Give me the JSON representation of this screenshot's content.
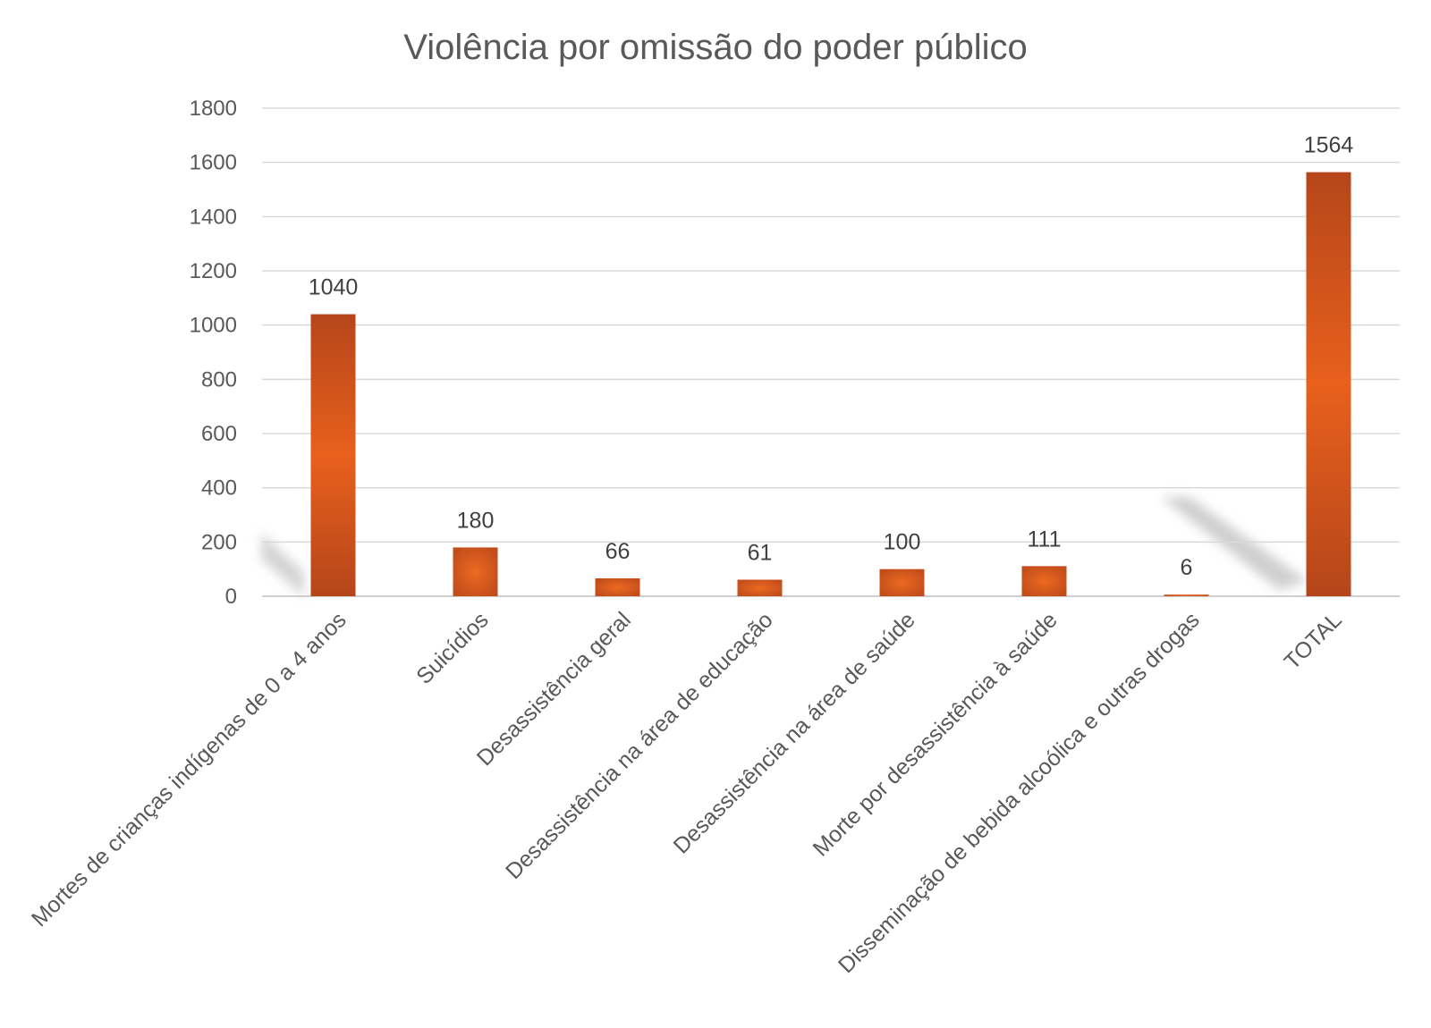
{
  "chart_data": {
    "type": "bar",
    "title": "Violência por omissão do poder público",
    "xlabel": "",
    "ylabel": "",
    "ylim": [
      0,
      1800
    ],
    "yticks": [
      0,
      200,
      400,
      600,
      800,
      1000,
      1200,
      1400,
      1600,
      1800
    ],
    "grid": true,
    "legend": "none",
    "categories": [
      "Mortes de crianças indígenas de 0 a 4 anos",
      "Suicídios",
      "Desassistência geral",
      "Desassistência na área de educação",
      "Desassistência na área de saúde",
      "Morte por desassistência à saúde",
      "Disseminação de bebida alcoólica e outras drogas",
      "TOTAL"
    ],
    "values": [
      1040,
      180,
      66,
      61,
      100,
      111,
      6,
      1564
    ],
    "data_labels": [
      "1040",
      "180",
      "66",
      "61",
      "100",
      "111",
      "6",
      "1564"
    ],
    "colors": {
      "bar_edge": "#b5461a",
      "bar_center": "#e8601c",
      "grid": "#d9d9d9",
      "text": "#595959"
    }
  }
}
